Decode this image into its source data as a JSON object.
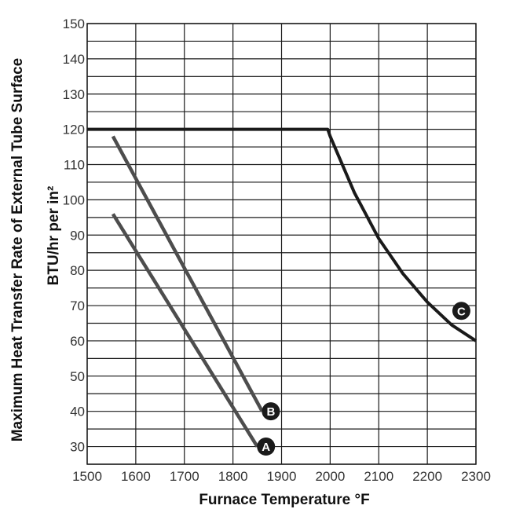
{
  "chart_data": {
    "type": "line",
    "xlabel": "Furnace Temperature °F",
    "ylabel": "Maximum Heat Transfer Rate of External Tube Surface",
    "ylabel2": "BTU/hr per in²",
    "xlim": [
      1500,
      2300
    ],
    "ylim": [
      25,
      150
    ],
    "x_ticks": [
      1500,
      1600,
      1700,
      1800,
      1900,
      2000,
      2100,
      2200,
      2300
    ],
    "y_ticks": [
      30,
      40,
      50,
      60,
      70,
      80,
      90,
      100,
      110,
      120,
      130,
      140,
      150
    ],
    "grid": true,
    "series": [
      {
        "name": "A",
        "color": "#4d4d4d",
        "x": [
          1553,
          1850
        ],
        "y": [
          96,
          30
        ]
      },
      {
        "name": "B",
        "color": "#4d4d4d",
        "x": [
          1553,
          1860
        ],
        "y": [
          118,
          40
        ]
      },
      {
        "name": "C",
        "color": "#1a1a1a",
        "x": [
          1500,
          1995,
          2000,
          2050,
          2100,
          2150,
          2200,
          2250,
          2300
        ],
        "y": [
          120,
          120,
          118,
          102,
          89,
          79,
          71,
          64.5,
          60
        ]
      }
    ],
    "markers": [
      {
        "label": "B",
        "x": 1878,
        "y": 40
      },
      {
        "label": "A",
        "x": 1868,
        "y": 30
      },
      {
        "label": "C",
        "x": 2270,
        "y": 68.5
      }
    ]
  }
}
